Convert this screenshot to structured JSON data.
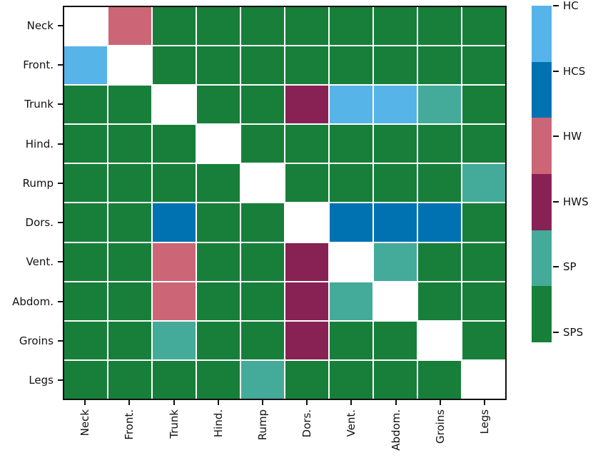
{
  "chart_data": {
    "type": "heatmap",
    "title": "",
    "grid": "white lines between cells, black frame",
    "legend_position": "right-colorbar",
    "categories": [
      "Neck",
      "Front.",
      "Trunk",
      "Hind.",
      "Rump",
      "Dors.",
      "Vent.",
      "Abdom.",
      "Groins",
      "Legs"
    ],
    "legend": {
      "labels": [
        "HC",
        "HCS",
        "HW",
        "HWS",
        "SP",
        "SPS"
      ],
      "colors": {
        "HC": "#56B4E9",
        "HCS": "#0072B2",
        "HW": "#CC6677",
        "HWS": "#882255",
        "SP": "#44AA99",
        "SPS": "#177F3A"
      },
      "diagonal_color": "#FFFFFF"
    },
    "matrix": [
      [
        null,
        "HW",
        "SPS",
        "SPS",
        "SPS",
        "SPS",
        "SPS",
        "SPS",
        "SPS",
        "SPS"
      ],
      [
        "HC",
        null,
        "SPS",
        "SPS",
        "SPS",
        "SPS",
        "SPS",
        "SPS",
        "SPS",
        "SPS"
      ],
      [
        "SPS",
        "SPS",
        null,
        "SPS",
        "SPS",
        "HWS",
        "HC",
        "HC",
        "SP",
        "SPS"
      ],
      [
        "SPS",
        "SPS",
        "SPS",
        null,
        "SPS",
        "SPS",
        "SPS",
        "SPS",
        "SPS",
        "SPS"
      ],
      [
        "SPS",
        "SPS",
        "SPS",
        "SPS",
        null,
        "SPS",
        "SPS",
        "SPS",
        "SPS",
        "SP"
      ],
      [
        "SPS",
        "SPS",
        "HCS",
        "SPS",
        "SPS",
        null,
        "HCS",
        "HCS",
        "HCS",
        "SPS"
      ],
      [
        "SPS",
        "SPS",
        "HW",
        "SPS",
        "SPS",
        "HWS",
        null,
        "SP",
        "SPS",
        "SPS"
      ],
      [
        "SPS",
        "SPS",
        "HW",
        "SPS",
        "SPS",
        "HWS",
        "SP",
        null,
        "SPS",
        "SPS"
      ],
      [
        "SPS",
        "SPS",
        "SP",
        "SPS",
        "SPS",
        "HWS",
        "SPS",
        "SPS",
        null,
        "SPS"
      ],
      [
        "SPS",
        "SPS",
        "SPS",
        "SPS",
        "SP",
        "SPS",
        "SPS",
        "SPS",
        "SPS",
        null
      ]
    ]
  }
}
